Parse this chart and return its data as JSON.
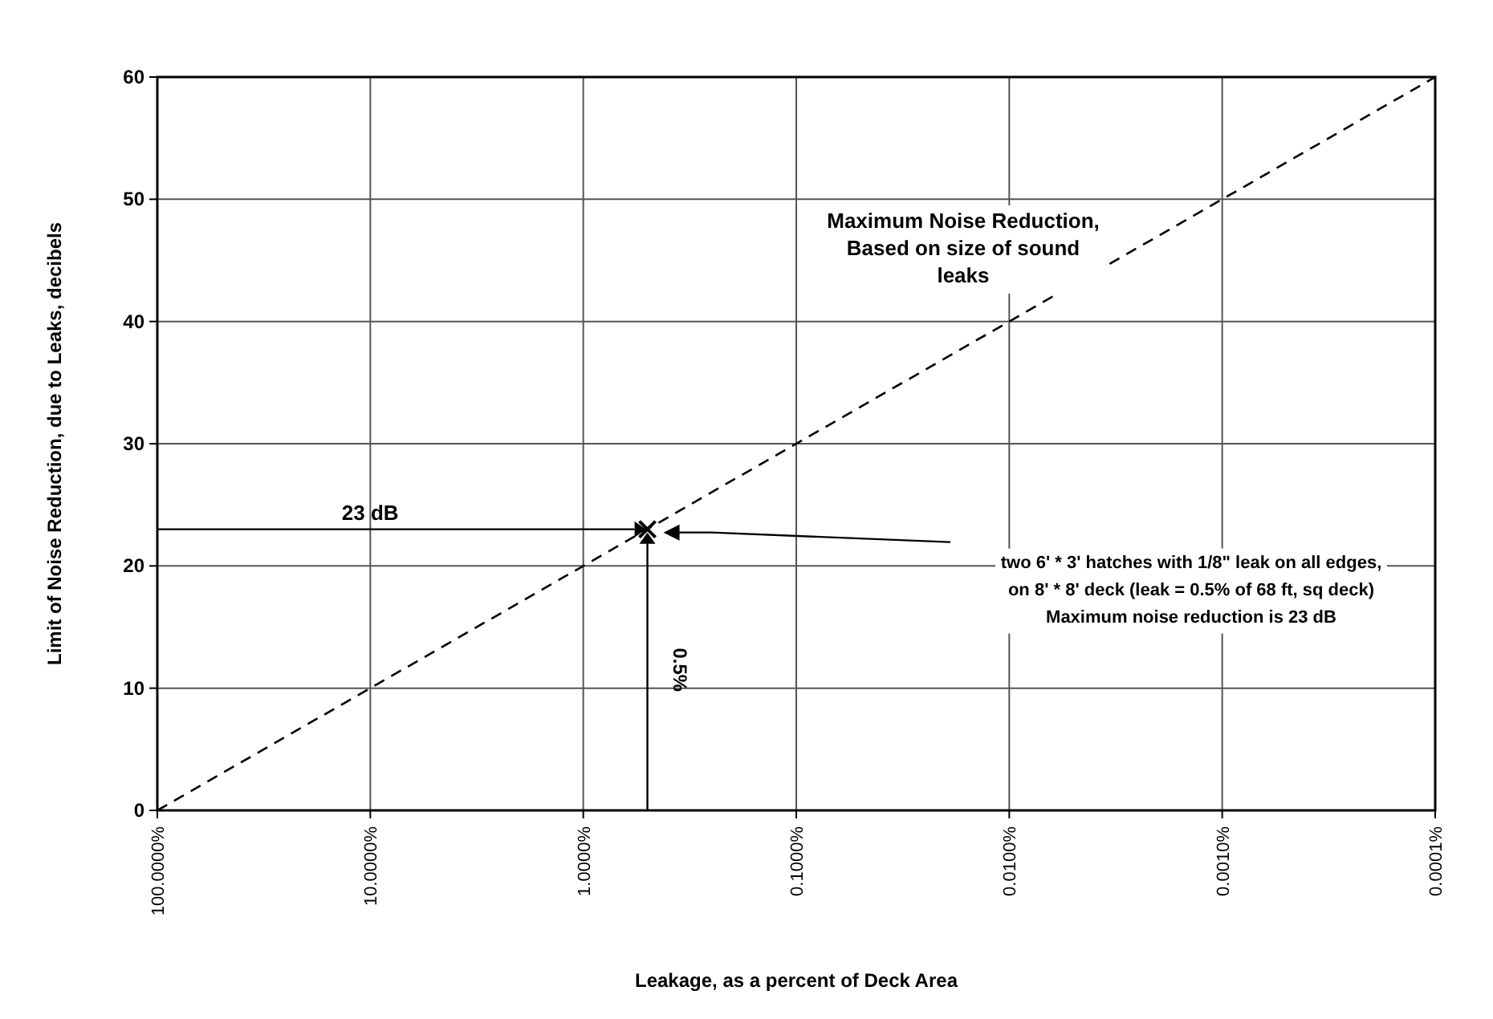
{
  "chart_data": {
    "type": "line",
    "xlabel": "Leakage, as a percent of Deck Area",
    "ylabel": "Limit of Noise Reduction, due to Leaks,  decibels",
    "log": "x",
    "xlim": [
      100,
      0.0001
    ],
    "xticks": [
      {
        "value": 100,
        "label": "100.0000%"
      },
      {
        "value": 10,
        "label": "10.0000%"
      },
      {
        "value": 1,
        "label": "1.0000%"
      },
      {
        "value": 0.1,
        "label": "0.1000%"
      },
      {
        "value": 0.01,
        "label": "0.0100%"
      },
      {
        "value": 0.001,
        "label": "0.0010%"
      },
      {
        "value": 0.0001,
        "label": "0.0001%"
      }
    ],
    "ylim": [
      0,
      60
    ],
    "yticks": [
      0,
      10,
      20,
      30,
      40,
      50,
      60
    ],
    "grid": true,
    "series": [
      {
        "color": "#000000",
        "line_style": "dashed",
        "x": [
          100,
          0.0001
        ],
        "values": [
          0,
          60
        ]
      },
      {
        "type": "scatter",
        "color": "#000000",
        "marker": "cross",
        "x": [
          0.5
        ],
        "values": [
          23
        ]
      }
    ],
    "annotations": [
      "Maximum Noise Reduction,  Based on size of sound leaks",
      "23 dB",
      "0.5%",
      "two 6' * 3' hatches with 1/8\" leak on all edges,\non 8' * 8' deck  (leak = 0.5% of 68 ft, sq deck)\nMaximum noise reduction is 23 dB"
    ]
  }
}
